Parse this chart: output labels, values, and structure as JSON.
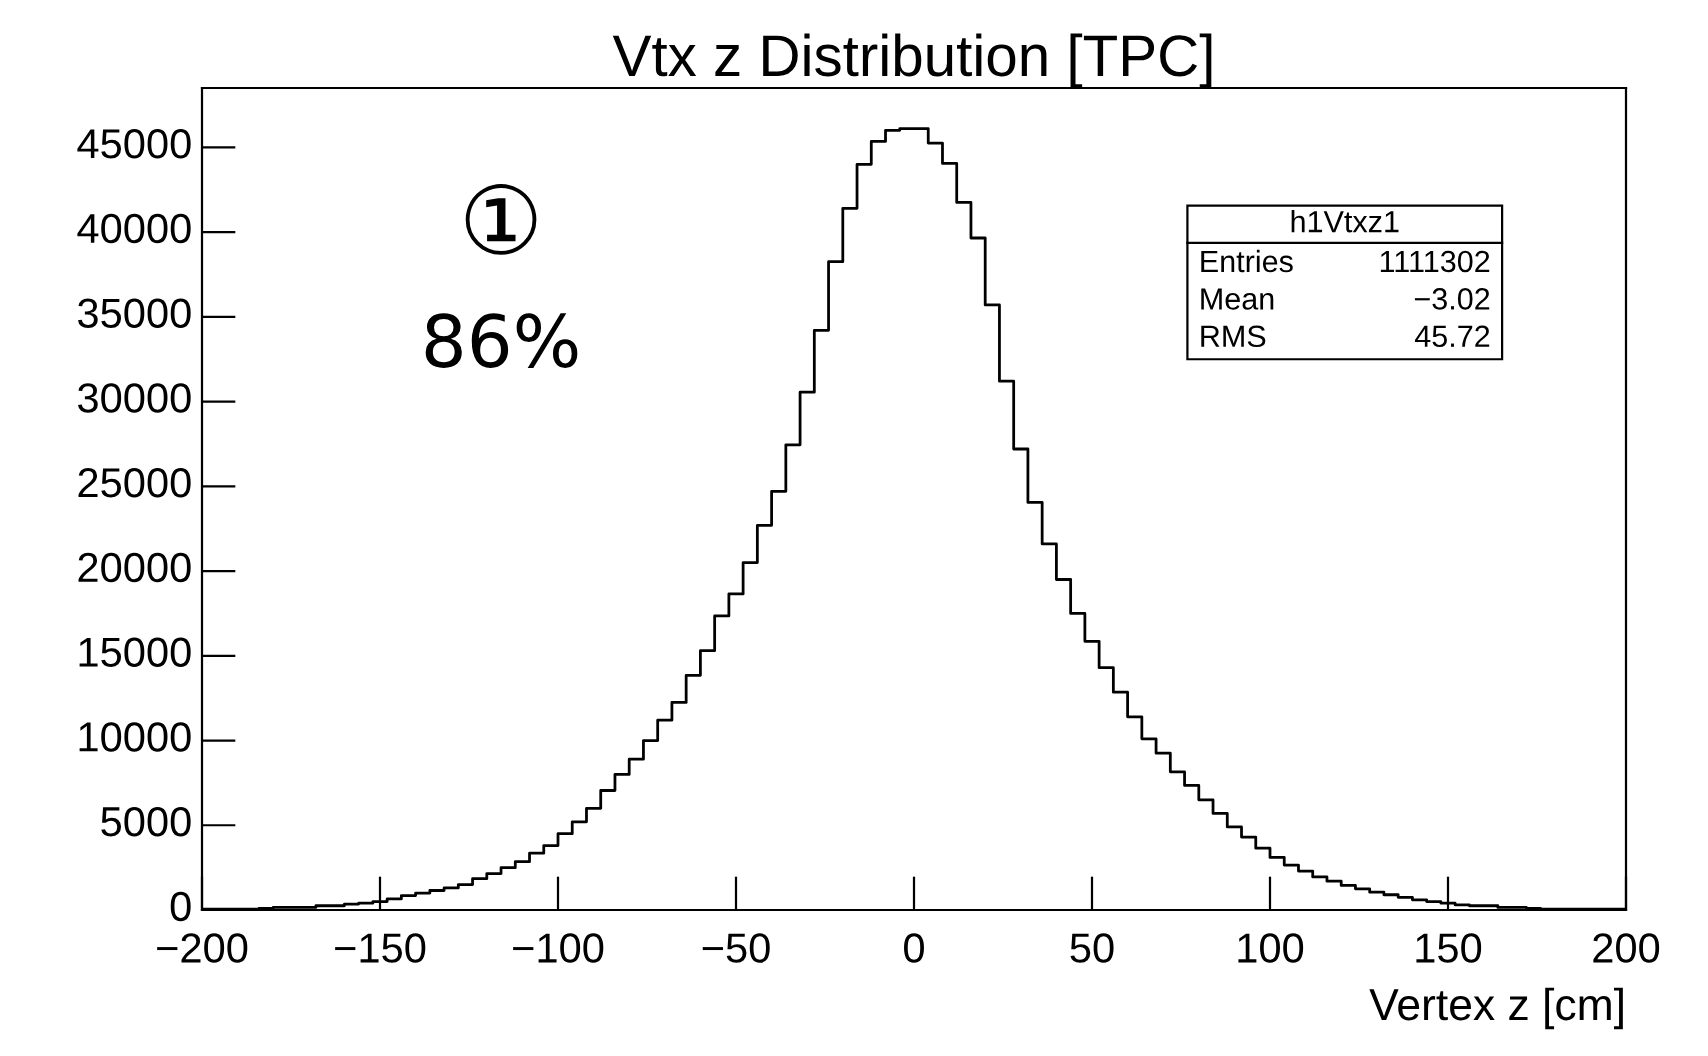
{
  "chart_data": {
    "type": "histogram",
    "title": "Vtx z Distribution [TPC]",
    "xlabel": "Vertex z [cm]",
    "bins": [
      -200,
      -196,
      -192,
      -188,
      -184,
      -180,
      -176,
      -172,
      -168,
      -164,
      -160,
      -156,
      -152,
      -148,
      -144,
      -140,
      -136,
      -132,
      -128,
      -124,
      -120,
      -116,
      -112,
      -108,
      -104,
      -100,
      -96,
      -92,
      -88,
      -84,
      -80,
      -76,
      -72,
      -68,
      -64,
      -60,
      -56,
      -52,
      -48,
      -44,
      -40,
      -36,
      -32,
      -28,
      -24,
      -20,
      -16,
      -12,
      -8,
      -4,
      0,
      4,
      8,
      12,
      16,
      20,
      24,
      28,
      32,
      36,
      40,
      44,
      48,
      52,
      56,
      60,
      64,
      68,
      72,
      76,
      80,
      84,
      88,
      92,
      96,
      100,
      104,
      108,
      112,
      116,
      120,
      124,
      128,
      132,
      136,
      140,
      144,
      148,
      152,
      156,
      160,
      164,
      168,
      172,
      176,
      180,
      184,
      188,
      192,
      196,
      200
    ],
    "values": [
      50,
      50,
      50,
      50,
      100,
      150,
      150,
      150,
      250,
      250,
      350,
      400,
      500,
      650,
      850,
      1000,
      1150,
      1300,
      1500,
      1850,
      2150,
      2500,
      2850,
      3350,
      3800,
      4500,
      5200,
      6000,
      7050,
      8000,
      8900,
      10000,
      11200,
      12250,
      13850,
      15300,
      17350,
      18650,
      20500,
      22700,
      24700,
      27450,
      30550,
      34200,
      38250,
      41400,
      44000,
      45350,
      46000,
      46100,
      46100,
      45250,
      44050,
      41750,
      39650,
      35700,
      31200,
      27200,
      24050,
      21600,
      19500,
      17500,
      15850,
      14300,
      12850,
      11400,
      10100,
      9250,
      8150,
      7350,
      6500,
      5700,
      4900,
      4300,
      3650,
      3100,
      2650,
      2300,
      1950,
      1700,
      1450,
      1250,
      1050,
      900,
      750,
      600,
      500,
      400,
      300,
      250,
      250,
      150,
      150,
      100,
      50,
      50,
      50,
      50,
      50,
      50
    ],
    "color": "#000000",
    "xlim": [
      -200,
      200
    ],
    "xticks": [
      -200,
      -150,
      -100,
      -50,
      0,
      50,
      100,
      150,
      200
    ],
    "ylim": [
      0,
      48500
    ],
    "yticks": [
      0,
      5000,
      10000,
      15000,
      20000,
      25000,
      30000,
      35000,
      40000,
      45000
    ],
    "grid": false,
    "annotations": [
      "①",
      "86%",
      "h1Vtxz1",
      "Entries",
      "1111302",
      "Mean",
      "−3.02",
      "RMS",
      "45.72"
    ]
  }
}
